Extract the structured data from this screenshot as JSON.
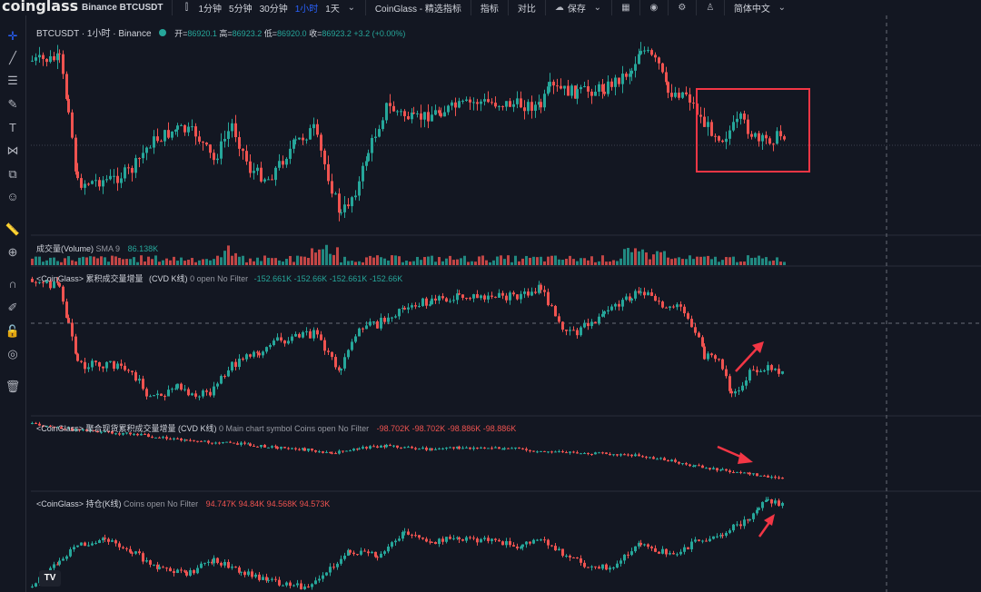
{
  "topbar": {
    "logo": "coinglass",
    "symbol": "Binance BTCUSDT",
    "timeframes": [
      "1分钟",
      "5分钟",
      "30分钟",
      "1小时",
      "1天"
    ],
    "active_timeframe": "1小时",
    "indicator_btn": "CoinGlass - 精选指标",
    "indicators": "指标",
    "compare": "对比",
    "save": "保存",
    "language": "简体中文"
  },
  "main_pane": {
    "title": "BTCUSDT · 1小时 · Binance",
    "open_label": "开=",
    "open": "86920.1",
    "high_label": "高=",
    "high": "86923.2",
    "low_label": "低=",
    "low": "86920.0",
    "close_label": "收=",
    "close": "86923.2",
    "change": "+3.2 (+0.00%)"
  },
  "volume_pane": {
    "label": "成交量(Volume)",
    "sma": "SMA 9",
    "value": "86.138K"
  },
  "cvd_pane": {
    "label": "<CoinGlass> 累积成交量增量",
    "type": "(CVD K线)",
    "settings": "0 open No Filter",
    "values": "-152.661K -152.66K -152.661K -152.66K"
  },
  "spot_cvd_pane": {
    "label": "<CoinGlass> 聚合现货累积成交量增量 (CVD K线)",
    "settings": "0 Main chart symbol Coins open No Filter",
    "values": "-98.702K -98.702K -98.886K -98.886K"
  },
  "oi_pane": {
    "label": "<CoinGlass> 持仓(K线)",
    "settings": "Coins open No Filter",
    "values": "94.747K 94.84K 94.568K 94.573K"
  },
  "colors": {
    "up": "#26a69a",
    "down": "#ef5350",
    "highlight": "#f23645",
    "background": "#131722"
  },
  "icons": [
    "crosshair-icon",
    "trendline-icon",
    "fib-icon",
    "brush-icon",
    "text-icon",
    "pattern-icon",
    "measure-icon",
    "emoji-icon",
    "ruler-icon",
    "zoom-icon",
    "magnet-icon",
    "lock-draw-icon",
    "lock-icon",
    "eye-icon",
    "trash-icon"
  ]
}
